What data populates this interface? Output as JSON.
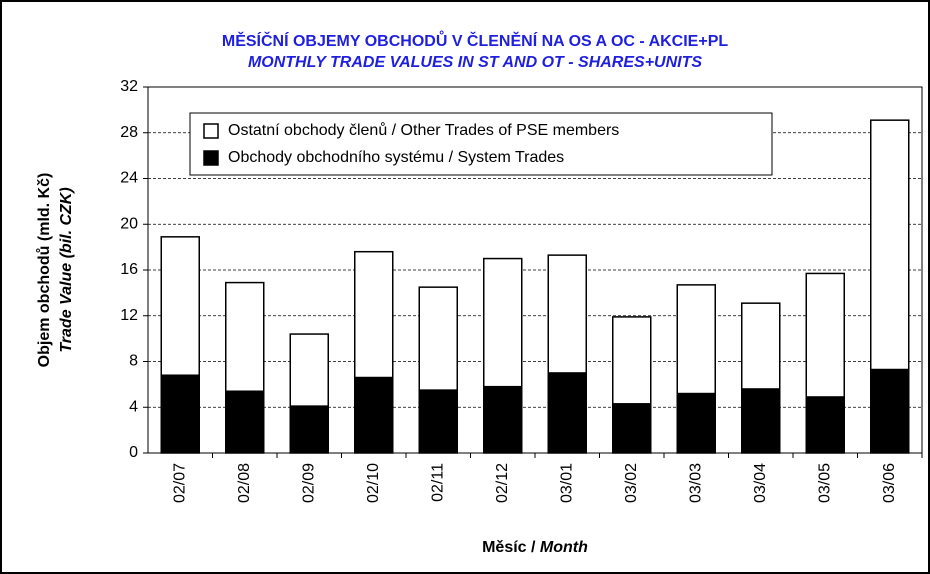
{
  "chart_data": {
    "type": "stacked_bar",
    "title": "MĚSÍČNÍ OBJEMY OBCHODŮ V ČLENĚNÍ NA OS A OC - AKCIE+PL",
    "subtitle": "MONTHLY TRADE VALUES IN ST AND OT - SHARES+UNITS",
    "y_label": [
      "Objem obchodů (mld. Kč)",
      "Trade Value (bil. CZK)"
    ],
    "x_label": [
      "Měsíc / ",
      "Month"
    ],
    "categories": [
      "02/07",
      "02/08",
      "02/09",
      "02/10",
      "02/11",
      "02/12",
      "03/01",
      "03/02",
      "03/03",
      "03/04",
      "03/05",
      "03/06"
    ],
    "series": [
      {
        "name": "Obchody obchodního systému / System Trades",
        "color": "#000000",
        "values": [
          6.8,
          5.4,
          4.1,
          6.6,
          5.5,
          5.8,
          7.0,
          4.3,
          5.2,
          5.6,
          4.9,
          7.3
        ]
      },
      {
        "name": "Ostatní obchody členů / Other Trades of PSE members",
        "color": "#ffffff",
        "values": [
          12.1,
          9.5,
          6.3,
          11.0,
          9.0,
          11.2,
          10.3,
          7.6,
          9.5,
          7.5,
          10.8,
          21.8
        ]
      }
    ],
    "ylim": [
      0,
      32
    ],
    "yticks": [
      0,
      4,
      8,
      12,
      16,
      20,
      24,
      28,
      32
    ],
    "grid": true
  }
}
